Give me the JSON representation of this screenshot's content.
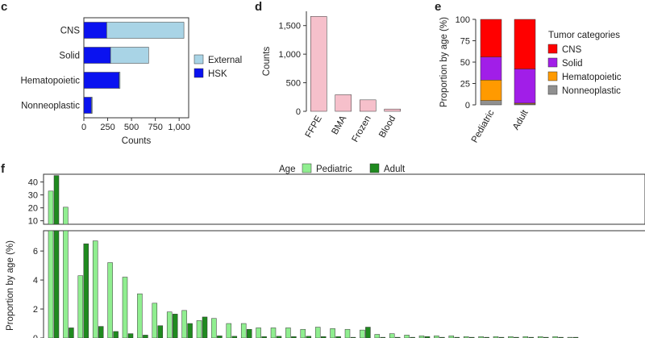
{
  "chart_data": [
    {
      "panel": "c",
      "type": "bar",
      "orientation": "horizontal",
      "stacked": true,
      "categories": [
        "CNS",
        "Solid",
        "Hematopoietic",
        "Nonneoplastic"
      ],
      "series": [
        {
          "name": "HSK",
          "values": [
            240,
            280,
            370,
            80
          ],
          "color": "#0a12f0"
        },
        {
          "name": "External",
          "values": [
            810,
            400,
            10,
            8
          ],
          "color": "#a9d4e6"
        }
      ],
      "xlabel": "Counts",
      "xlim": [
        0,
        1100
      ],
      "xticks": [
        0,
        250,
        500,
        750,
        1000
      ],
      "xtick_labels": [
        "0",
        "250",
        "500",
        "750",
        "1,000"
      ],
      "legend": [
        "External",
        "HSK"
      ]
    },
    {
      "panel": "d",
      "type": "bar",
      "categories": [
        "FFPE",
        "BMA",
        "Frozen",
        "Blood"
      ],
      "values": [
        1660,
        290,
        200,
        40
      ],
      "color": "#f6c0cb",
      "ylabel": "Counts",
      "ylim": [
        0,
        1750
      ],
      "yticks": [
        0,
        500,
        1000,
        1500
      ],
      "ytick_labels": [
        "0",
        "500",
        "1,000",
        "1,500"
      ]
    },
    {
      "panel": "e",
      "type": "bar",
      "stacked": true,
      "categories": [
        "Pediatric",
        "Adult"
      ],
      "series": [
        {
          "name": "Nonneoplastic",
          "values": [
            5,
            1
          ],
          "color": "#909090"
        },
        {
          "name": "Hematopoietic",
          "values": [
            24,
            1
          ],
          "color": "#ff9a00"
        },
        {
          "name": "Solid",
          "values": [
            27,
            40
          ],
          "color": "#a11ee8"
        },
        {
          "name": "CNS",
          "values": [
            44,
            58
          ],
          "color": "#ff0000"
        }
      ],
      "ylabel": "Proportion by age (%)",
      "ylim": [
        0,
        100
      ],
      "yticks": [
        0,
        25,
        50,
        75,
        100
      ],
      "legend_title": "Tumor categories",
      "legend": [
        "CNS",
        "Solid",
        "Hematopoietic",
        "Nonneoplastic"
      ]
    },
    {
      "panel": "f",
      "type": "bar",
      "broken_axis": true,
      "upper_ticks": [
        10,
        20,
        30,
        40
      ],
      "lower_ticks": [
        0,
        2,
        4,
        6
      ],
      "ylabel": "Proportion by age (%)",
      "legend_title": "Age",
      "legend": [
        "Pediatric",
        "Adult"
      ],
      "series": [
        {
          "name": "Pediatric",
          "color": "#90ee90",
          "values": [
            33,
            20.5,
            4.3,
            6.7,
            5.2,
            4.2,
            3.05,
            2.4,
            1.8,
            1.9,
            1.2,
            1.35,
            1.0,
            1.0,
            0.7,
            0.7,
            0.7,
            0.6,
            0.75,
            0.65,
            0.6,
            0.55,
            0.25,
            0.3,
            0.2,
            0.15,
            0.15,
            0.15,
            0.1,
            0.1,
            0.1,
            0.1,
            0.1,
            0.1,
            0.1,
            0.05
          ]
        },
        {
          "name": "Adult",
          "color": "#1f8a1f",
          "values": [
            45,
            0.7,
            6.5,
            0.8,
            0.45,
            0.3,
            0.2,
            0.85,
            1.65,
            1.0,
            1.45,
            0.15,
            0.12,
            0.6,
            0.1,
            0.12,
            0.1,
            0.12,
            0.1,
            0.1,
            0.05,
            0.75,
            0.05,
            0.05,
            0.05,
            0.1,
            0.05,
            0.05,
            0.05,
            0.05,
            0.05,
            0.05,
            0.05,
            0.05,
            0.05,
            0.05
          ]
        }
      ]
    }
  ]
}
